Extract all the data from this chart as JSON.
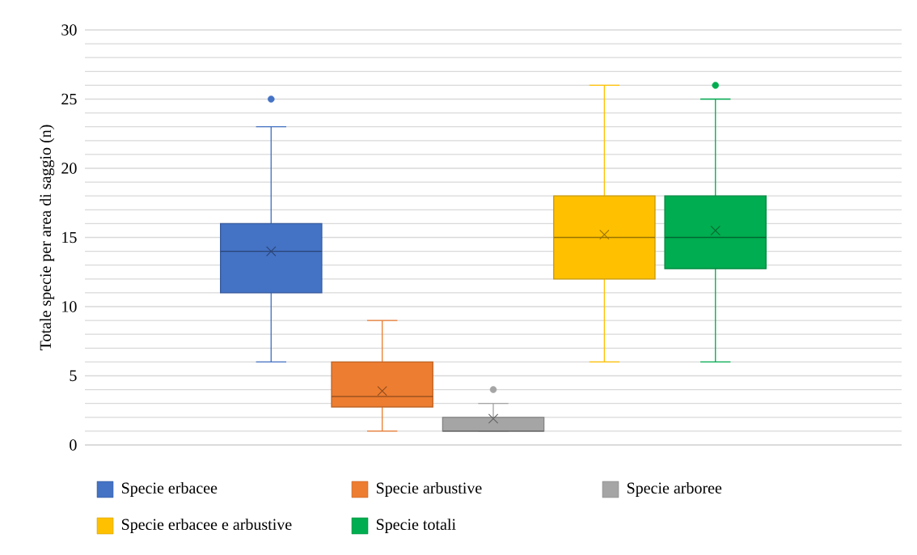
{
  "chart_data": {
    "type": "box",
    "ylabel": "Totale specie per area di saggio (n)",
    "categories": [
      null
    ],
    "ylim": [
      0,
      30
    ],
    "yticks": [
      0,
      5,
      10,
      15,
      20,
      25,
      30
    ],
    "grid": "y",
    "legend": "bottom",
    "series": [
      {
        "name": "Specie erbacee",
        "color": "#4472c4",
        "boxes": [
          {
            "low": 6,
            "q1": 11,
            "median": 14,
            "q3": 16,
            "high": 23,
            "mean": 14,
            "outliers": [
              25
            ]
          }
        ]
      },
      {
        "name": "Specie arbustive",
        "color": "#ed7d31",
        "boxes": [
          {
            "low": 1,
            "q1": 2.75,
            "median": 3.5,
            "q3": 6,
            "high": 9,
            "mean": 3.9
          }
        ]
      },
      {
        "name": "Specie arboree",
        "color": "#a5a5a5",
        "boxes": [
          {
            "low": 1,
            "q1": 1,
            "median": 1,
            "q3": 2,
            "high": 3,
            "mean": 1.9,
            "outliers": [
              4
            ]
          }
        ]
      },
      {
        "name": "Specie erbacee e arbustive",
        "color": "#ffc000",
        "boxes": [
          {
            "low": 6,
            "q1": 12,
            "median": 15,
            "q3": 18,
            "high": 26,
            "mean": 15.2
          }
        ]
      },
      {
        "name": "Specie totali",
        "color": "#00ad50",
        "boxes": [
          {
            "low": 6,
            "q1": 12.75,
            "median": 15,
            "q3": 18,
            "high": 25,
            "mean": 15.5,
            "outliers": [
              26
            ]
          }
        ]
      }
    ]
  }
}
